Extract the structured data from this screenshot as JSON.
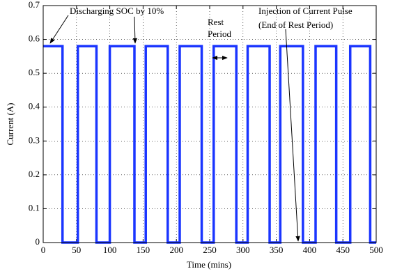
{
  "chart_data": {
    "type": "line",
    "xlabel": "Time (mins)",
    "ylabel": "Current (A)",
    "x": [
      0,
      29,
      29,
      52,
      52,
      80,
      80,
      100,
      100,
      137,
      137,
      154,
      154,
      187,
      187,
      205,
      205,
      238,
      238,
      256,
      256,
      290,
      290,
      307,
      307,
      340,
      340,
      356,
      356,
      390,
      390,
      409,
      409,
      440,
      440,
      461,
      461,
      491,
      491,
      500
    ],
    "values": [
      0.58,
      0.58,
      0,
      0,
      0.58,
      0.58,
      0,
      0,
      0.58,
      0.58,
      0,
      0,
      0.58,
      0.58,
      0,
      0,
      0.58,
      0.58,
      0,
      0,
      0.58,
      0.58,
      0,
      0,
      0.58,
      0.58,
      0,
      0,
      0.58,
      0.58,
      0,
      0,
      0.58,
      0.58,
      0,
      0,
      0.58,
      0.58,
      0,
      0
    ],
    "color": "#1a35ff",
    "xlim": [
      0,
      500
    ],
    "xticks": [
      0,
      50,
      100,
      150,
      200,
      250,
      300,
      350,
      400,
      450,
      500
    ],
    "ylim": [
      0,
      0.7
    ],
    "yticks": [
      0,
      0.1,
      0.2,
      0.3,
      0.4,
      0.5,
      0.6,
      0.7
    ],
    "grid": true,
    "annotations": [
      "Discharging SOC by 10%",
      "Rest",
      "Period",
      "Injection of Current Pulse",
      "(End of Rest Period)"
    ]
  }
}
